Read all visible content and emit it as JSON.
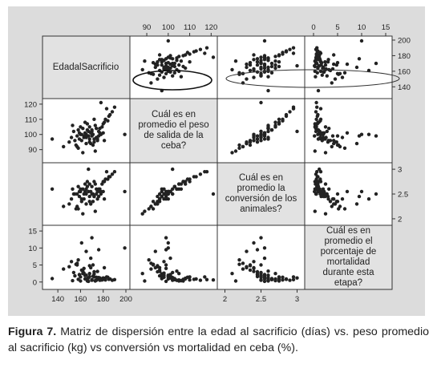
{
  "caption": {
    "label": "Figura 7.",
    "text": "Matriz de dispersión entre la edad al sacrificio (días) vs. peso promedio al sacrificio (kg) vs conversión vs mortalidad en ceba (%)."
  },
  "chart_data": {
    "type": "scatter",
    "variables": [
      {
        "key": "edad",
        "label": "EdadalSacrificio",
        "lim": [
          130,
          200
        ],
        "ticks": [
          "140",
          "160",
          "180",
          "200"
        ],
        "tick_values": [
          140,
          160,
          180,
          200
        ]
      },
      {
        "key": "peso",
        "label": "Cuál es en promedio el peso de salida de la ceba?",
        "lim": [
          84,
          121
        ],
        "ticks": [
          "90",
          "100",
          "110",
          "120"
        ],
        "tick_values": [
          90,
          100,
          110,
          120
        ]
      },
      {
        "key": "conv",
        "label": "Cuál es en promedio la conversión de los animales?",
        "lim": [
          1.95,
          3.05
        ],
        "ticks": [
          "2",
          "2.5",
          "3"
        ],
        "tick_values": [
          2,
          2.5,
          3
        ]
      },
      {
        "key": "mort",
        "label": "Cuál es en promedio el porcentaje de mortalidad durante esta etapa?",
        "lim": [
          -1,
          15.5
        ],
        "ticks": [
          "0",
          "5",
          "10",
          "15"
        ],
        "tick_values": [
          0,
          5,
          10,
          15
        ]
      }
    ],
    "points": [
      [
        160,
        100,
        2.55,
        1.5
      ],
      [
        165,
        98,
        2.6,
        2.0
      ],
      [
        170,
        102,
        2.5,
        0.5
      ],
      [
        175,
        97,
        2.55,
        1.0
      ],
      [
        168,
        105,
        2.7,
        2.5
      ],
      [
        172,
        95,
        2.45,
        3.0
      ],
      [
        158,
        103,
        2.65,
        0.8
      ],
      [
        180,
        101,
        2.55,
        1.2
      ],
      [
        163,
        99,
        2.4,
        4.0
      ],
      [
        177,
        104,
        2.6,
        0.5
      ],
      [
        155,
        96,
        2.5,
        1.8
      ],
      [
        166,
        107,
        2.75,
        0.3
      ],
      [
        171,
        93,
        2.35,
        5.0
      ],
      [
        182,
        110,
        2.8,
        0.6
      ],
      [
        159,
        101,
        2.55,
        2.2
      ],
      [
        174,
        98,
        2.5,
        1.4
      ],
      [
        150,
        95,
        2.3,
        4.5
      ],
      [
        185,
        112,
        2.85,
        0.8
      ],
      [
        162,
        104,
        2.6,
        3.2
      ],
      [
        178,
        100,
        2.55,
        0.9
      ],
      [
        168,
        97,
        2.45,
        1.6
      ],
      [
        157,
        92,
        2.25,
        5.5
      ],
      [
        173,
        106,
        2.7,
        0.4
      ],
      [
        181,
        108,
        2.75,
        1.1
      ],
      [
        165,
        100,
        2.5,
        2.0
      ],
      [
        170,
        103,
        2.65,
        0.7
      ],
      [
        152,
        98,
        2.4,
        6.0
      ],
      [
        188,
        115,
        2.9,
        0.5
      ],
      [
        161,
        96,
        2.35,
        3.5
      ],
      [
        176,
        102,
        2.6,
        1.3
      ],
      [
        167,
        99,
        2.55,
        0.2
      ],
      [
        183,
        117,
        2.95,
        1.5
      ],
      [
        154,
        102,
        2.5,
        2.8
      ],
      [
        169,
        94,
        2.3,
        4.2
      ],
      [
        179,
        105,
        2.7,
        0.6
      ],
      [
        164,
        101,
        2.55,
        1.9
      ],
      [
        172,
        97,
        2.45,
        2.4
      ],
      [
        156,
        93,
        2.2,
        5.2
      ],
      [
        186,
        113,
        2.85,
        0.9
      ],
      [
        160,
        105,
        2.6,
        0.3
      ],
      [
        175,
        96,
        2.4,
        3.1
      ],
      [
        166,
        103,
        2.65,
        1.0
      ],
      [
        171,
        100,
        2.5,
        1.7
      ],
      [
        158,
        91,
        2.2,
        6.5
      ],
      [
        180,
        107,
        2.75,
        0.8
      ],
      [
        163,
        98,
        2.5,
        2.6
      ],
      [
        177,
        101,
        2.55,
        1.2
      ],
      [
        153,
        106,
        2.6,
        0.4
      ],
      [
        190,
        118,
        2.95,
        0.7
      ],
      [
        168,
        95,
        2.35,
        4.8
      ],
      [
        174,
        104,
        2.6,
        0.5
      ],
      [
        159,
        97,
        2.45,
        2.1
      ],
      [
        184,
        109,
        2.8,
        1.4
      ],
      [
        165,
        94,
        2.3,
        9.0
      ],
      [
        170,
        99,
        2.5,
        13.0
      ],
      [
        145,
        92,
        2.25,
        3.8
      ],
      [
        135,
        97,
        2.6,
        1.0
      ],
      [
        199,
        100,
        2.55,
        10.0
      ],
      [
        173,
        89,
        2.15,
        0.3
      ],
      [
        162,
        88,
        2.1,
        2.5
      ],
      [
        178,
        121,
        2.5,
        0.6
      ],
      [
        167,
        102,
        3.0,
        1.2
      ],
      [
        176,
        99,
        2.45,
        9.5
      ],
      [
        161,
        100,
        2.4,
        11.5
      ],
      [
        169,
        101,
        2.55,
        7.0
      ],
      [
        157,
        99,
        2.5,
        5.0
      ],
      [
        181,
        96,
        2.4,
        4.2
      ],
      [
        164,
        108,
        2.7,
        0.9
      ],
      [
        172,
        110,
        2.75,
        1.5
      ]
    ]
  }
}
